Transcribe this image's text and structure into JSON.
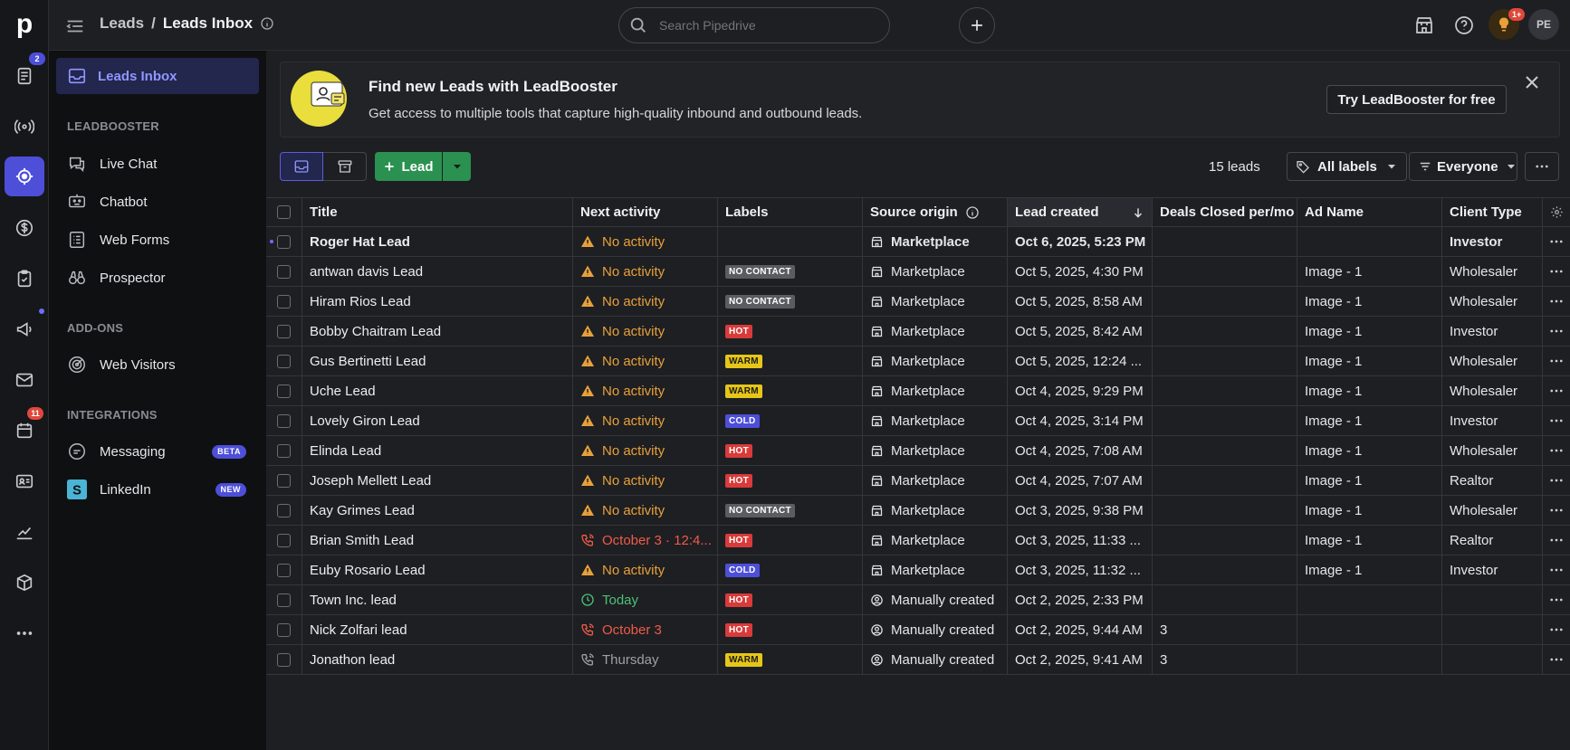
{
  "rail": {
    "logo": "p",
    "badges": {
      "leads": "2",
      "calendar": "11"
    },
    "colors": {
      "accent": "#4d4fd9",
      "badge_red": "#e0483b",
      "badge_blue": "#4d4fd9"
    }
  },
  "header": {
    "breadcrumb_parent": "Leads",
    "breadcrumb_sep": "/",
    "breadcrumb_current": "Leads Inbox",
    "search_placeholder": "Search Pipedrive",
    "notif_badge": "1+",
    "user_initials": "PE"
  },
  "sidebar": {
    "inbox_label": "Leads Inbox",
    "sections": [
      {
        "title": "LEADBOOSTER",
        "items": [
          {
            "label": "Live Chat",
            "icon": "chat-icon"
          },
          {
            "label": "Chatbot",
            "icon": "bot-icon"
          },
          {
            "label": "Web Forms",
            "icon": "form-icon"
          },
          {
            "label": "Prospector",
            "icon": "binoculars-icon"
          }
        ]
      },
      {
        "title": "ADD-ONS",
        "items": [
          {
            "label": "Web Visitors",
            "icon": "radar-icon"
          }
        ]
      },
      {
        "title": "INTEGRATIONS",
        "items": [
          {
            "label": "Messaging",
            "icon": "message-icon",
            "tag": "BETA"
          },
          {
            "label": "LinkedIn",
            "icon": "linkedin-icon",
            "tag": "NEW"
          }
        ]
      }
    ]
  },
  "banner": {
    "title": "Find new Leads with LeadBooster",
    "subtitle": "Get access to multiple tools that capture high-quality inbound and outbound leads.",
    "cta": "Try LeadBooster for free"
  },
  "toolbar": {
    "add_lead": "Lead",
    "count": "15 leads",
    "labels_filter": "All labels",
    "owner_filter": "Everyone"
  },
  "table": {
    "columns": [
      "Title",
      "Next activity",
      "Labels",
      "Source origin",
      "Lead created",
      "Deals Closed per/mo",
      "Ad Name",
      "Client Type"
    ],
    "label_colors": {
      "NO CONTACT": "#5a5c62",
      "HOT": "#d93a3a",
      "WARM": "#e6c619",
      "COLD": "#4d4fd9"
    },
    "rows": [
      {
        "title": "Roger Hat Lead",
        "activity": "No activity",
        "activity_type": "warn",
        "label": "",
        "source": "Marketplace",
        "source_type": "market",
        "created": "Oct 6, 2025, 5:23 PM",
        "deals": "",
        "ad": "",
        "client": "Investor",
        "bold": true
      },
      {
        "title": "antwan davis Lead",
        "activity": "No activity",
        "activity_type": "warn",
        "label": "NO CONTACT",
        "source": "Marketplace",
        "source_type": "market",
        "created": "Oct 5, 2025, 4:30 PM",
        "deals": "",
        "ad": "Image - 1",
        "client": "Wholesaler"
      },
      {
        "title": "Hiram Rios Lead",
        "activity": "No activity",
        "activity_type": "warn",
        "label": "NO CONTACT",
        "source": "Marketplace",
        "source_type": "market",
        "created": "Oct 5, 2025, 8:58 AM",
        "deals": "",
        "ad": "Image - 1",
        "client": "Wholesaler"
      },
      {
        "title": "Bobby Chaitram Lead",
        "activity": "No activity",
        "activity_type": "warn",
        "label": "HOT",
        "source": "Marketplace",
        "source_type": "market",
        "created": "Oct 5, 2025, 8:42 AM",
        "deals": "",
        "ad": "Image - 1",
        "client": "Investor"
      },
      {
        "title": "Gus Bertinetti Lead",
        "activity": "No activity",
        "activity_type": "warn",
        "label": "WARM",
        "source": "Marketplace",
        "source_type": "market",
        "created": "Oct 5, 2025, 12:24 ...",
        "deals": "",
        "ad": "Image - 1",
        "client": "Wholesaler"
      },
      {
        "title": "Uche Lead",
        "activity": "No activity",
        "activity_type": "warn",
        "label": "WARM",
        "source": "Marketplace",
        "source_type": "market",
        "created": "Oct 4, 2025, 9:29 PM",
        "deals": "",
        "ad": "Image - 1",
        "client": "Wholesaler"
      },
      {
        "title": "Lovely Giron Lead",
        "activity": "No activity",
        "activity_type": "warn",
        "label": "COLD",
        "source": "Marketplace",
        "source_type": "market",
        "created": "Oct 4, 2025, 3:14 PM",
        "deals": "",
        "ad": "Image - 1",
        "client": "Investor"
      },
      {
        "title": "Elinda Lead",
        "activity": "No activity",
        "activity_type": "warn",
        "label": "HOT",
        "source": "Marketplace",
        "source_type": "market",
        "created": "Oct 4, 2025, 7:08 AM",
        "deals": "",
        "ad": "Image - 1",
        "client": "Wholesaler"
      },
      {
        "title": "Joseph Mellett Lead",
        "activity": "No activity",
        "activity_type": "warn",
        "label": "HOT",
        "source": "Marketplace",
        "source_type": "market",
        "created": "Oct 4, 2025, 7:07 AM",
        "deals": "",
        "ad": "Image - 1",
        "client": "Realtor"
      },
      {
        "title": "Kay Grimes Lead",
        "activity": "No activity",
        "activity_type": "warn",
        "label": "NO CONTACT",
        "source": "Marketplace",
        "source_type": "market",
        "created": "Oct 3, 2025, 9:38 PM",
        "deals": "",
        "ad": "Image - 1",
        "client": "Wholesaler"
      },
      {
        "title": "Brian Smith Lead",
        "activity": "October 3 · 12:4...",
        "activity_type": "call-red",
        "label": "HOT",
        "source": "Marketplace",
        "source_type": "market",
        "created": "Oct 3, 2025, 11:33 ...",
        "deals": "",
        "ad": "Image - 1",
        "client": "Realtor"
      },
      {
        "title": "Euby Rosario Lead",
        "activity": "No activity",
        "activity_type": "warn",
        "label": "COLD",
        "source": "Marketplace",
        "source_type": "market",
        "created": "Oct 3, 2025, 11:32 ...",
        "deals": "",
        "ad": "Image - 1",
        "client": "Investor"
      },
      {
        "title": "Town Inc. lead",
        "activity": "Today",
        "activity_type": "clock-green",
        "label": "HOT",
        "source": "Manually created",
        "source_type": "manual",
        "created": "Oct 2, 2025, 2:33 PM",
        "deals": "",
        "ad": "",
        "client": ""
      },
      {
        "title": "Nick Zolfari lead",
        "activity": "October 3",
        "activity_type": "call-red",
        "label": "HOT",
        "source": "Manually created",
        "source_type": "manual",
        "created": "Oct 2, 2025, 9:44 AM",
        "deals": "3",
        "ad": "",
        "client": ""
      },
      {
        "title": "Jonathon lead",
        "activity": "Thursday",
        "activity_type": "call-grey",
        "label": "WARM",
        "source": "Manually created",
        "source_type": "manual",
        "created": "Oct 2, 2025, 9:41 AM",
        "deals": "3",
        "ad": "",
        "client": ""
      }
    ]
  }
}
